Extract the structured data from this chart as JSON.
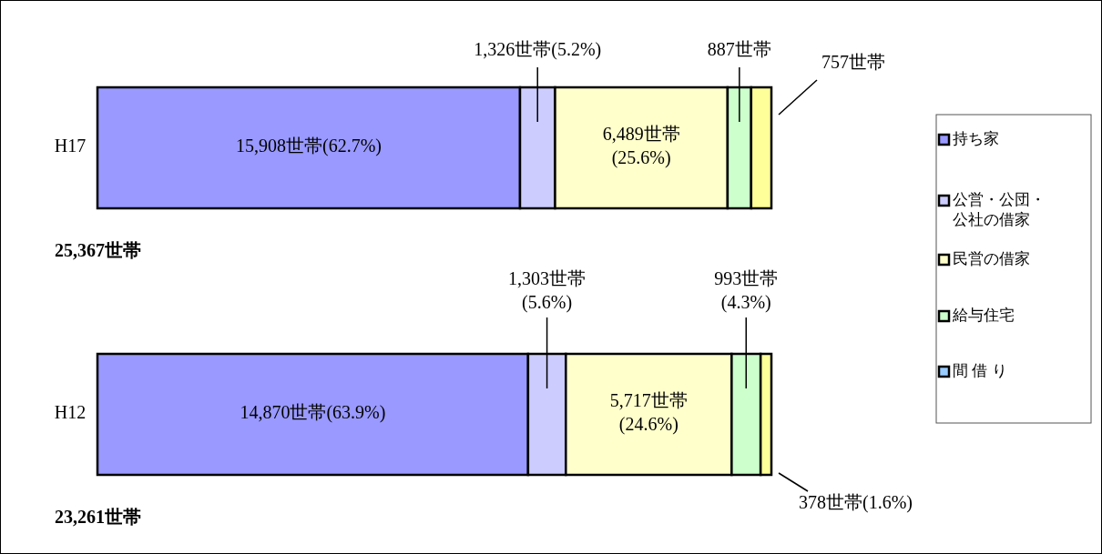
{
  "chart_data": {
    "type": "bar",
    "orientation": "horizontal",
    "stacked": true,
    "legend": "right",
    "categories": [
      "H17",
      "H12"
    ],
    "series": [
      {
        "name": "持ち家",
        "color": "#9999ff",
        "values": [
          62.7,
          63.9
        ],
        "value_labels": [
          "15,908世帯(62.7%)",
          "14,870世帯(63.9%)"
        ]
      },
      {
        "name": "公営・公団・公社の借家",
        "color": "#ccccff",
        "values": [
          5.2,
          5.6
        ],
        "value_labels": [
          "1,326世帯(5.2%)",
          "1,303世帯(5.6%)"
        ]
      },
      {
        "name": "民営の借家",
        "color": "#ffffcc",
        "values": [
          25.6,
          24.6
        ],
        "value_labels": [
          "6,489世帯(25.6%)",
          "5,717世帯(24.6%)"
        ]
      },
      {
        "name": "給与住宅",
        "color": "#ccffcc",
        "values": [
          3.5,
          4.3
        ],
        "value_labels": [
          null,
          "993世帯(4.3%)"
        ]
      },
      {
        "name": "間 借 り",
        "color": "#99ccff",
        "colors": [
          "#ffff99",
          "#ffff99"
        ],
        "values": [
          3.0,
          1.6
        ],
        "value_labels": [
          null,
          "378世帯(1.6%)"
        ]
      }
    ],
    "annotations": [
      "25,367世帯",
      "23,261世帯",
      "887世帯",
      "757世帯"
    ]
  }
}
